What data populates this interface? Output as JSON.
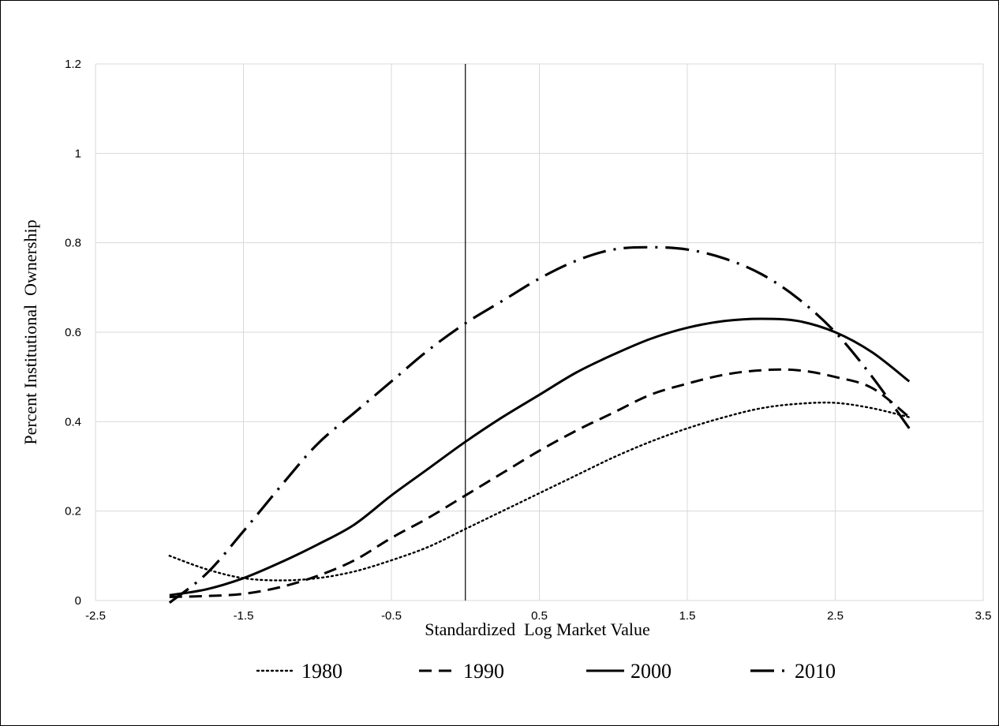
{
  "chart_data": {
    "type": "line",
    "title": "",
    "xlabel": "Standardized  Log Market Value",
    "ylabel": "Percent Institutional  Ownership",
    "xlim": [
      -2.5,
      3.5
    ],
    "ylim": [
      0,
      1.2
    ],
    "xticks": [
      -2.5,
      -1.5,
      -0.5,
      0.5,
      1.5,
      2.5,
      3.5
    ],
    "yticks": [
      0,
      0.2,
      0.4,
      0.6,
      0.8,
      1,
      1.2
    ],
    "xtick_labels": [
      "-2.5",
      "-1.5",
      "-0.5",
      "0.5",
      "1.5",
      "2.5",
      "3.5"
    ],
    "ytick_labels": [
      "0",
      "0.2",
      "0.4",
      "0.6",
      "0.8",
      "1",
      "1.2"
    ],
    "grid": true,
    "reference_line_x": 0,
    "legend_position": "bottom",
    "series": [
      {
        "name": "1980",
        "style": "dotted",
        "x": [
          -2.0,
          -1.75,
          -1.5,
          -1.25,
          -1.0,
          -0.75,
          -0.5,
          -0.25,
          0.0,
          0.25,
          0.5,
          0.75,
          1.0,
          1.25,
          1.5,
          1.75,
          2.0,
          2.25,
          2.5,
          2.75,
          3.0
        ],
        "y": [
          0.1,
          0.07,
          0.05,
          0.045,
          0.05,
          0.065,
          0.09,
          0.12,
          0.16,
          0.2,
          0.24,
          0.28,
          0.32,
          0.355,
          0.385,
          0.41,
          0.43,
          0.44,
          0.442,
          0.43,
          0.41
        ]
      },
      {
        "name": "1990",
        "style": "dashed",
        "x": [
          -2.0,
          -1.75,
          -1.5,
          -1.25,
          -1.0,
          -0.75,
          -0.5,
          -0.25,
          0.0,
          0.25,
          0.5,
          0.75,
          1.0,
          1.25,
          1.5,
          1.75,
          2.0,
          2.25,
          2.5,
          2.75,
          3.0
        ],
        "y": [
          0.008,
          0.01,
          0.015,
          0.03,
          0.055,
          0.09,
          0.14,
          0.185,
          0.235,
          0.285,
          0.335,
          0.38,
          0.42,
          0.46,
          0.485,
          0.505,
          0.515,
          0.515,
          0.5,
          0.475,
          0.41
        ]
      },
      {
        "name": "2000",
        "style": "solid",
        "x": [
          -2.0,
          -1.75,
          -1.5,
          -1.25,
          -1.0,
          -0.75,
          -0.5,
          -0.25,
          0.0,
          0.25,
          0.5,
          0.75,
          1.0,
          1.25,
          1.5,
          1.75,
          2.0,
          2.25,
          2.5,
          2.75,
          3.0
        ],
        "y": [
          0.012,
          0.025,
          0.05,
          0.085,
          0.125,
          0.17,
          0.235,
          0.295,
          0.355,
          0.41,
          0.46,
          0.51,
          0.55,
          0.585,
          0.61,
          0.625,
          0.63,
          0.625,
          0.6,
          0.555,
          0.49
        ]
      },
      {
        "name": "2010",
        "style": "dash-dot",
        "x": [
          -2.0,
          -1.75,
          -1.5,
          -1.25,
          -1.0,
          -0.75,
          -0.5,
          -0.25,
          0.0,
          0.25,
          0.5,
          0.75,
          1.0,
          1.25,
          1.5,
          1.75,
          2.0,
          2.25,
          2.5,
          2.75,
          3.0
        ],
        "y": [
          -0.005,
          0.06,
          0.155,
          0.255,
          0.35,
          0.42,
          0.49,
          0.56,
          0.62,
          0.67,
          0.72,
          0.76,
          0.785,
          0.79,
          0.785,
          0.765,
          0.73,
          0.675,
          0.6,
          0.5,
          0.385
        ]
      }
    ]
  }
}
